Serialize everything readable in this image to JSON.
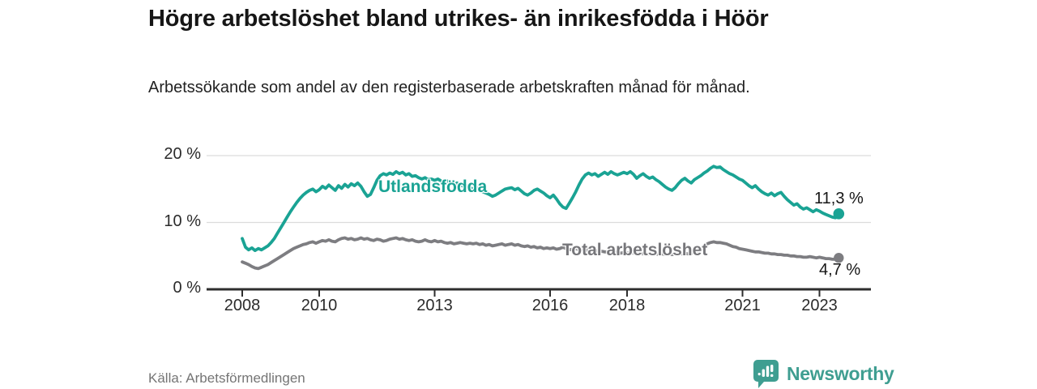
{
  "header": {
    "title": "Högre arbetslöshet bland utrikes- än inrikesfödda i Höör",
    "subtitle": "Arbetssökande som andel av den registerbaserade arbetskraften månad för månad."
  },
  "footer": {
    "source": "Källa: Arbetsförmedlingen",
    "brand": "Newsworthy"
  },
  "colors": {
    "accent_teal": "#1aa394",
    "neutral_gray": "#7d7d81",
    "axis": "#2e2e2e",
    "gridline": "#dcdcdc",
    "logo_teal": "#3f9e91"
  },
  "chart_data": {
    "type": "line",
    "title": "Högre arbetslöshet bland utrikes- än inrikesfödda i Höör",
    "subtitle": "Arbetssökande som andel av den registerbaserade arbetskraften månad för månad.",
    "x_unit": "month",
    "x_start_year": 2008,
    "x_ticks": [
      2008,
      2010,
      2013,
      2016,
      2018,
      2021,
      2023
    ],
    "x_tick_labels": [
      "2008",
      "2010",
      "2013",
      "2016",
      "2018",
      "2021",
      "2023"
    ],
    "y_ticks": [
      0,
      10,
      20
    ],
    "y_tick_labels": [
      "0 %",
      "10 %",
      "20 %"
    ],
    "ylim": [
      0,
      21
    ],
    "xlim": [
      2007.05,
      2024.35
    ],
    "grid": "horizontal",
    "legend_position": "inline-labels",
    "series": [
      {
        "name": "Utlandsfödda",
        "inline_label": "Utlandsfödda",
        "end_label": "11,3 %",
        "end_value": 11.3,
        "color": "#1aa394",
        "values": [
          7.6,
          6.3,
          5.9,
          6.2,
          5.8,
          6.1,
          5.9,
          6.2,
          6.5,
          7.0,
          7.6,
          8.4,
          9.2,
          10.0,
          10.8,
          11.6,
          12.3,
          13.0,
          13.6,
          14.1,
          14.5,
          14.8,
          15.0,
          14.6,
          14.9,
          15.4,
          15.1,
          15.6,
          15.2,
          14.8,
          15.5,
          15.1,
          15.7,
          15.3,
          15.8,
          15.5,
          15.9,
          15.4,
          14.6,
          13.9,
          14.2,
          15.2,
          16.3,
          17.0,
          17.3,
          17.1,
          17.4,
          17.2,
          17.6,
          17.3,
          17.5,
          17.1,
          17.3,
          16.9,
          17.0,
          16.7,
          16.5,
          16.7,
          16.4,
          16.5,
          16.3,
          16.5,
          16.2,
          16.0,
          16.2,
          15.9,
          15.7,
          15.9,
          15.6,
          15.4,
          15.5,
          15.2,
          15.0,
          15.2,
          14.9,
          14.6,
          14.4,
          14.2,
          13.9,
          14.1,
          14.4,
          14.7,
          15.0,
          15.1,
          15.2,
          14.9,
          15.1,
          14.7,
          14.3,
          14.1,
          14.4,
          14.8,
          15.0,
          14.7,
          14.4,
          14.0,
          13.7,
          14.1,
          13.5,
          12.8,
          12.3,
          12.1,
          12.9,
          13.7,
          14.6,
          15.6,
          16.5,
          17.1,
          17.4,
          17.1,
          17.3,
          16.9,
          17.2,
          17.5,
          17.2,
          17.6,
          17.3,
          17.1,
          17.3,
          17.5,
          17.3,
          17.6,
          17.2,
          16.6,
          17.0,
          17.3,
          16.9,
          16.6,
          16.8,
          16.4,
          16.1,
          15.7,
          15.3,
          15.0,
          14.8,
          15.2,
          15.8,
          16.3,
          16.6,
          16.2,
          15.9,
          16.4,
          16.7,
          17.0,
          17.4,
          17.7,
          18.1,
          18.4,
          18.2,
          18.3,
          17.9,
          17.6,
          17.3,
          17.1,
          16.8,
          16.5,
          16.3,
          15.9,
          15.5,
          15.2,
          15.5,
          15.0,
          14.6,
          14.3,
          14.1,
          14.4,
          14.0,
          14.3,
          14.5,
          13.9,
          13.4,
          13.0,
          12.6,
          12.8,
          12.3,
          12.0,
          12.2,
          11.9,
          11.6,
          11.9,
          11.7,
          11.4,
          11.2,
          11.0,
          10.8,
          10.7,
          11.3
        ]
      },
      {
        "name": "Total arbetslöshet",
        "inline_label": "Total arbetslöshet",
        "end_label": "4,7 %",
        "end_value": 4.7,
        "color": "#7d7d81",
        "values": [
          4.1,
          3.9,
          3.7,
          3.4,
          3.2,
          3.1,
          3.3,
          3.5,
          3.7,
          4.0,
          4.3,
          4.6,
          4.9,
          5.2,
          5.5,
          5.8,
          6.1,
          6.3,
          6.5,
          6.7,
          6.8,
          7.0,
          7.1,
          6.9,
          7.1,
          7.3,
          7.2,
          7.4,
          7.2,
          7.1,
          7.4,
          7.6,
          7.7,
          7.5,
          7.6,
          7.4,
          7.5,
          7.7,
          7.5,
          7.6,
          7.4,
          7.3,
          7.5,
          7.4,
          7.2,
          7.3,
          7.5,
          7.6,
          7.7,
          7.5,
          7.6,
          7.4,
          7.3,
          7.4,
          7.2,
          7.1,
          7.2,
          7.4,
          7.2,
          7.1,
          7.3,
          7.1,
          7.2,
          7.0,
          6.9,
          7.0,
          6.8,
          6.9,
          7.0,
          6.9,
          6.8,
          6.9,
          6.8,
          6.9,
          6.7,
          6.8,
          6.6,
          6.7,
          6.5,
          6.6,
          6.7,
          6.8,
          6.6,
          6.7,
          6.8,
          6.6,
          6.7,
          6.5,
          6.4,
          6.5,
          6.3,
          6.4,
          6.2,
          6.3,
          6.1,
          6.2,
          6.1,
          6.2,
          6.0,
          6.1,
          6.3,
          6.1,
          5.9,
          6.0,
          6.1,
          5.9,
          6.0,
          5.8,
          5.9,
          5.8,
          5.8,
          5.7,
          5.7,
          5.6,
          5.6,
          5.5,
          5.6,
          5.5,
          5.4,
          5.5,
          5.4,
          5.5,
          5.4,
          5.3,
          5.4,
          5.3,
          5.2,
          5.3,
          5.2,
          5.3,
          5.2,
          5.3,
          5.2,
          5.3,
          5.2,
          5.3,
          5.4,
          5.3,
          5.4,
          5.3,
          5.4,
          5.5,
          5.7,
          6.0,
          6.4,
          6.8,
          7.0,
          7.1,
          7.0,
          7.0,
          6.9,
          6.8,
          6.6,
          6.4,
          6.3,
          6.1,
          6.0,
          5.9,
          5.8,
          5.7,
          5.6,
          5.6,
          5.5,
          5.4,
          5.4,
          5.3,
          5.3,
          5.2,
          5.2,
          5.1,
          5.1,
          5.0,
          5.0,
          4.9,
          4.9,
          4.8,
          4.8,
          4.9,
          4.8,
          4.7,
          4.8,
          4.7,
          4.6,
          4.6,
          4.5,
          4.5,
          4.7
        ]
      }
    ]
  }
}
